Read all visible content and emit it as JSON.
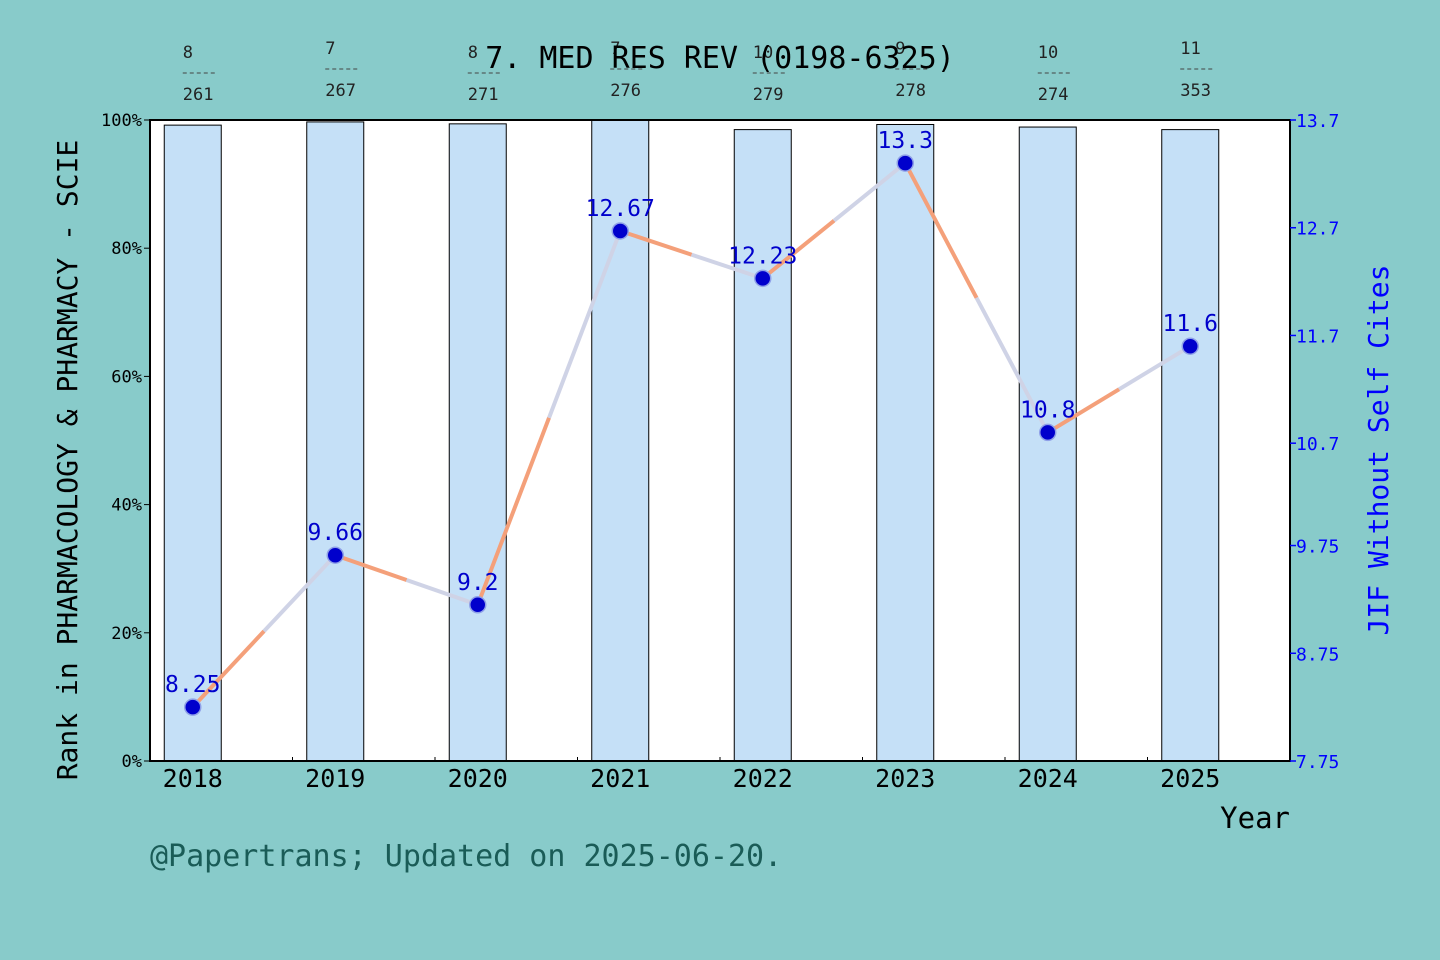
{
  "chart_data": {
    "type": "bar+line",
    "title": "7. MED RES REV (0198-6325)",
    "xlabel": "Year",
    "ylabel_left": "Rank in PHARMACOLOGY & PHARMACY - SCIE",
    "ylabel_right": "JIF Without Self Cites",
    "footer": "@Papertrans; Updated on 2025-06-20.",
    "categories": [
      "2018",
      "2019",
      "2020",
      "2021",
      "2022",
      "2023",
      "2024",
      "2025"
    ],
    "left_axis": {
      "ylim": [
        0,
        100
      ],
      "ticks": [
        0,
        20,
        40,
        60,
        80,
        100
      ],
      "tick_labels": [
        "0%",
        "20%",
        "40%",
        "60%",
        "80%",
        "100%"
      ]
    },
    "right_axis": {
      "ylim": [
        7.75,
        13.7
      ],
      "ticks": [
        7.75,
        8.75,
        9.75,
        10.7,
        11.7,
        12.7,
        13.7
      ],
      "tick_labels": [
        "7.75",
        "8.75",
        "9.75",
        "10.7",
        "11.7",
        "12.7",
        "13.7"
      ]
    },
    "bars": {
      "values": [
        99.2,
        99.7,
        99.4,
        100.0,
        98.5,
        99.3,
        98.9,
        98.5
      ]
    },
    "rank": {
      "numerators": [
        "8",
        "7",
        "8",
        "7",
        "10",
        "9",
        "10",
        "11"
      ],
      "denominators": [
        "261",
        "267",
        "271",
        "276",
        "279",
        "278",
        "274",
        "353"
      ]
    },
    "line": {
      "values": [
        8.25,
        9.66,
        9.2,
        12.67,
        12.23,
        13.3,
        10.8,
        11.6
      ],
      "labels": [
        "8.25",
        "9.66",
        "9.2",
        "12.67",
        "12.23",
        "13.3",
        "10.8",
        "11.6"
      ]
    },
    "colors": {
      "background": "#88cbca",
      "plot_bg": "#ffffff",
      "bar_fill": "#c5e0f7",
      "line_start": "#f4a07a",
      "line_end": "#cfd3e6",
      "marker": "#0000cc",
      "right_axis": "#0000ff",
      "footer": "#1a5c57"
    }
  }
}
